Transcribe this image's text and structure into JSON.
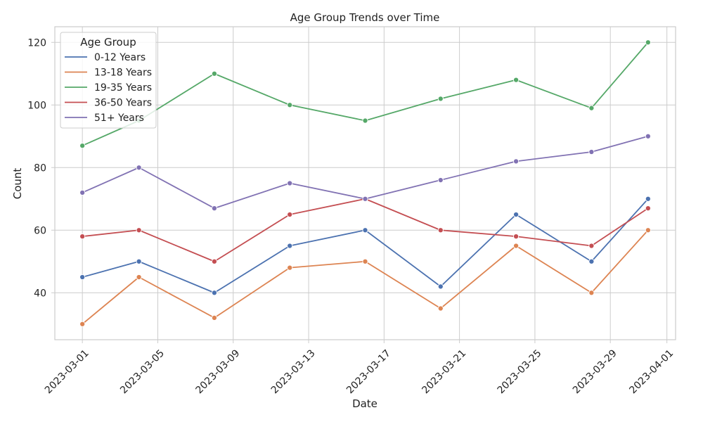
{
  "chart_data": {
    "type": "line",
    "title": "Age Group Trends over Time",
    "xlabel": "Date",
    "ylabel": "Count",
    "x": [
      "2023-03-01",
      "2023-03-04",
      "2023-03-08",
      "2023-03-12",
      "2023-03-16",
      "2023-03-20",
      "2023-03-24",
      "2023-03-28",
      "2023-03-31"
    ],
    "xlim": [
      "2022-02-27",
      "2023-04-02"
    ],
    "ylim": [
      25,
      125
    ],
    "x_ticks": [
      "2023-03-01",
      "2023-03-05",
      "2023-03-09",
      "2023-03-13",
      "2023-03-17",
      "2023-03-21",
      "2023-03-25",
      "2023-03-29",
      "2023-04-01"
    ],
    "y_ticks": [
      40,
      60,
      80,
      100,
      120
    ],
    "grid": true,
    "legend": {
      "title": "Age Group",
      "position": "top-left"
    },
    "series": [
      {
        "name": "0-12 Years",
        "color": "#4c72b0",
        "values": [
          45,
          50,
          40,
          55,
          60,
          42,
          65,
          50,
          70
        ]
      },
      {
        "name": "13-18 Years",
        "color": "#dd8452",
        "values": [
          30,
          45,
          32,
          48,
          50,
          35,
          55,
          40,
          60
        ]
      },
      {
        "name": "19-35 Years",
        "color": "#55a868",
        "values": [
          87,
          95,
          110,
          100,
          95,
          102,
          108,
          99,
          120
        ]
      },
      {
        "name": "36-50 Years",
        "color": "#c44e52",
        "values": [
          58,
          60,
          50,
          65,
          70,
          60,
          58,
          55,
          67
        ]
      },
      {
        "name": "51+ Years",
        "color": "#8172b3",
        "values": [
          72,
          80,
          67,
          75,
          70,
          76,
          82,
          85,
          90
        ]
      }
    ]
  }
}
